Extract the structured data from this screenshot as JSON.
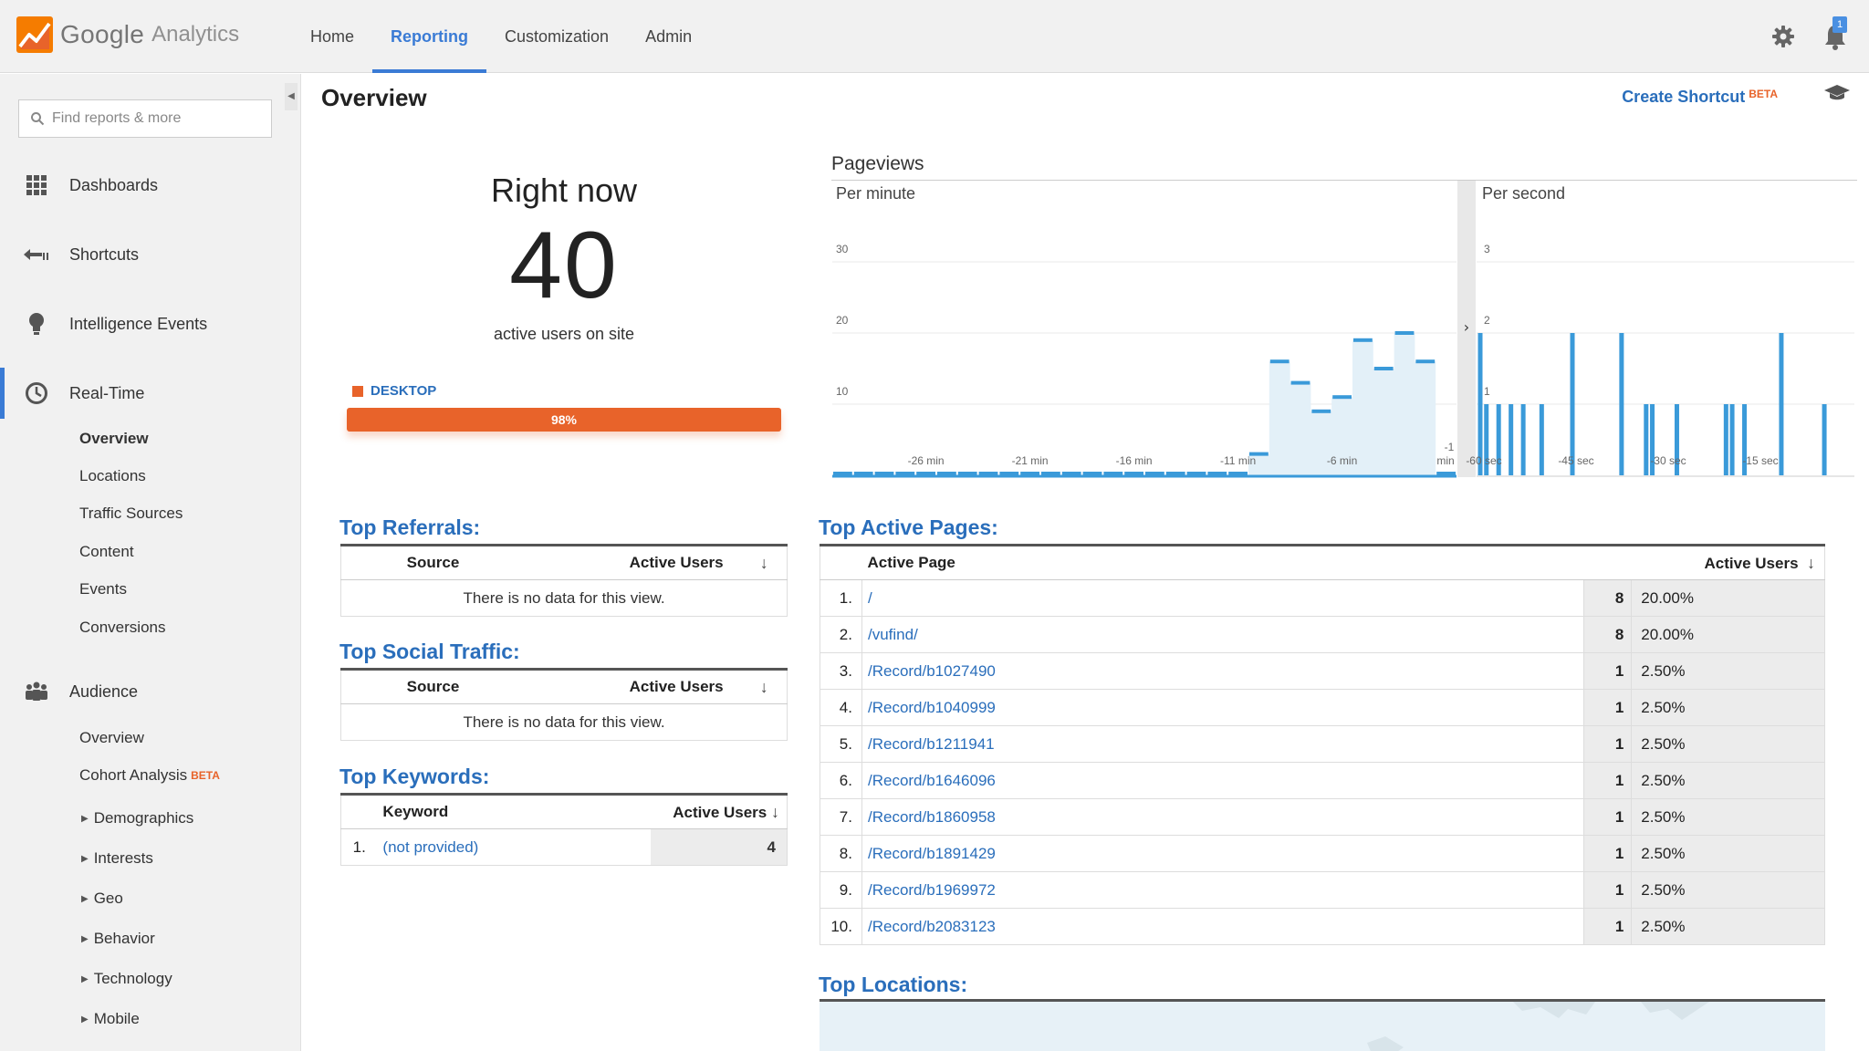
{
  "app": {
    "logo_google": "Google",
    "logo_analytics": "Analytics"
  },
  "nav": {
    "items": [
      "Home",
      "Reporting",
      "Customization",
      "Admin"
    ],
    "active": "Reporting"
  },
  "notifications": {
    "badge": "1"
  },
  "sidebar": {
    "search_placeholder": "Find reports & more",
    "sections": {
      "dashboards": "Dashboards",
      "shortcuts": "Shortcuts",
      "intelligence": "Intelligence Events",
      "realtime": "Real-Time",
      "audience": "Audience"
    },
    "realtime_items": [
      "Overview",
      "Locations",
      "Traffic Sources",
      "Content",
      "Events",
      "Conversions"
    ],
    "audience_items": {
      "overview": "Overview",
      "cohort": "Cohort Analysis",
      "cohort_beta": "BETA",
      "expandable": [
        "Demographics",
        "Interests",
        "Geo",
        "Behavior",
        "Technology",
        "Mobile"
      ]
    }
  },
  "main": {
    "title": "Overview",
    "create_shortcut": "Create Shortcut",
    "create_shortcut_beta": "BETA",
    "right_now": {
      "title": "Right now",
      "count": "40",
      "subtitle": "active users on site",
      "device_label": "DESKTOP",
      "device_percent_label": "98%",
      "device_fraction": 0.98
    },
    "top_referrals": {
      "title": "Top Referrals:",
      "col_source": "Source",
      "col_users": "Active Users",
      "empty": "There is no data for this view."
    },
    "top_social": {
      "title": "Top Social Traffic:",
      "col_source": "Source",
      "col_users": "Active Users",
      "empty": "There is no data for this view."
    },
    "top_keywords": {
      "title": "Top Keywords:",
      "col_keyword": "Keyword",
      "col_users": "Active Users",
      "rows": [
        {
          "rank": "1.",
          "keyword": "(not provided)",
          "users": "4"
        }
      ]
    },
    "top_active_pages": {
      "title": "Top Active Pages:",
      "col_page": "Active Page",
      "col_users": "Active Users",
      "rows": [
        {
          "rank": "1.",
          "page": "/",
          "users": "8",
          "pct": "20.00%"
        },
        {
          "rank": "2.",
          "page": "/vufind/",
          "users": "8",
          "pct": "20.00%"
        },
        {
          "rank": "3.",
          "page": "/Record/b1027490",
          "users": "1",
          "pct": "2.50%"
        },
        {
          "rank": "4.",
          "page": "/Record/b1040999",
          "users": "1",
          "pct": "2.50%"
        },
        {
          "rank": "5.",
          "page": "/Record/b1211941",
          "users": "1",
          "pct": "2.50%"
        },
        {
          "rank": "6.",
          "page": "/Record/b1646096",
          "users": "1",
          "pct": "2.50%"
        },
        {
          "rank": "7.",
          "page": "/Record/b1860958",
          "users": "1",
          "pct": "2.50%"
        },
        {
          "rank": "8.",
          "page": "/Record/b1891429",
          "users": "1",
          "pct": "2.50%"
        },
        {
          "rank": "9.",
          "page": "/Record/b1969972",
          "users": "1",
          "pct": "2.50%"
        },
        {
          "rank": "10.",
          "page": "/Record/b2083123",
          "users": "1",
          "pct": "2.50%"
        }
      ]
    },
    "top_locations": {
      "title": "Top Locations:"
    }
  },
  "chart_data": {
    "type": "bar",
    "title": "Pageviews",
    "color": "#3a9ad9",
    "panels": [
      {
        "name": "Per minute",
        "ylim": [
          0,
          35
        ],
        "yticks": [
          10,
          20,
          30
        ],
        "xticks": [
          "-26 min",
          "-21 min",
          "-16 min",
          "-11 min",
          "-6 min",
          "-1 min"
        ],
        "minutes_ago": [
          30,
          29,
          28,
          27,
          26,
          25,
          24,
          23,
          22,
          21,
          20,
          19,
          18,
          17,
          16,
          15,
          14,
          13,
          12,
          11,
          10,
          9,
          8,
          7,
          6,
          5,
          4,
          3,
          2,
          1
        ],
        "values": [
          0,
          0,
          0,
          0,
          0,
          0,
          0,
          0,
          0,
          0,
          0,
          0,
          0,
          0,
          0,
          0,
          0,
          0,
          0,
          0,
          3,
          16,
          13,
          9,
          11,
          19,
          15,
          20,
          16,
          0
        ]
      },
      {
        "name": "Per second",
        "ylim": [
          0,
          3.5
        ],
        "yticks": [
          1,
          2,
          3
        ],
        "xticks": [
          "-60 sec",
          "-45 sec",
          "-30 sec",
          "-15 sec"
        ],
        "seconds_ago": [
          60,
          59,
          57,
          55,
          53,
          50,
          45,
          37,
          33,
          32,
          28,
          20,
          19,
          17,
          11,
          4
        ],
        "values": [
          2,
          1,
          1,
          1,
          1,
          1,
          2,
          2,
          1,
          1,
          1,
          1,
          1,
          1,
          2,
          1
        ]
      }
    ]
  }
}
